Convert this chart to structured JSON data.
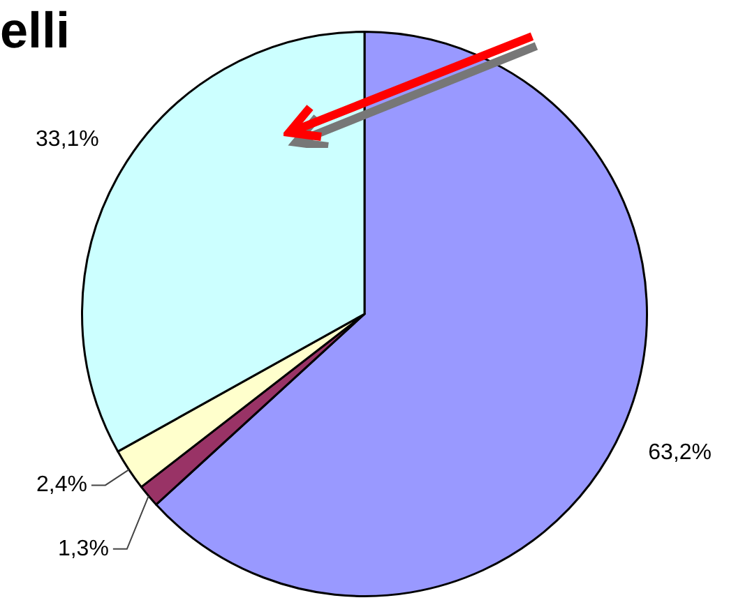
{
  "chart_data": {
    "type": "pie",
    "title": "elli",
    "categories": [
      null,
      null,
      null,
      null
    ],
    "values": [
      63.2,
      1.3,
      2.4,
      33.1
    ],
    "colors": [
      "#9999ff",
      "#993366",
      "#ffffcc",
      "#ccffff"
    ],
    "value_labels": [
      "63,2%",
      "1,3%",
      "2,4%",
      "33,1%"
    ],
    "legend": false
  }
}
